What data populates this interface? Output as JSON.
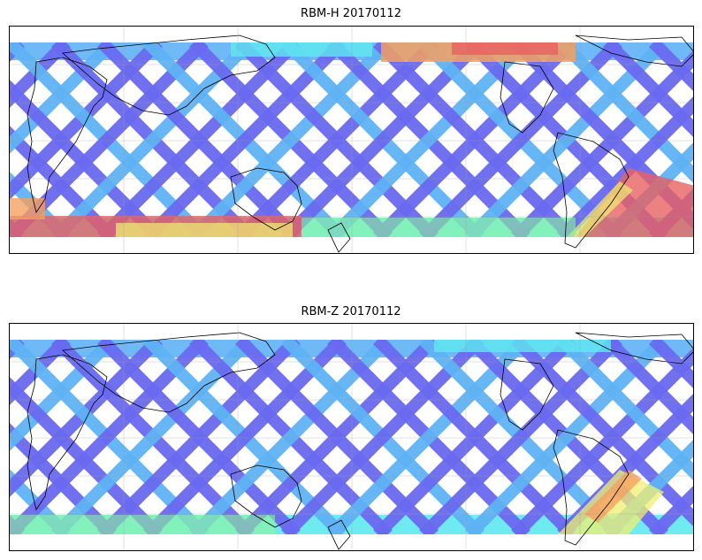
{
  "panels": [
    {
      "title": "RBM-H 20170112",
      "swath_colors": {
        "low": "#6a6af0",
        "mid": "#5fb3f5",
        "cyan": "#5fe8f0",
        "green": "#8ff59a",
        "yellow": "#f0f070",
        "orange": "#f5a060",
        "high": "#e86060"
      },
      "scheme": "high"
    },
    {
      "title": "RBM-Z 20170112",
      "swath_colors": {
        "low": "#6a6af0",
        "mid": "#5fb3f5",
        "cyan": "#5fe8f0",
        "green": "#8ff59a",
        "yellow": "#f0f070",
        "orange": "#f5a060",
        "high": "#e86060"
      },
      "scheme": "low"
    }
  ]
}
